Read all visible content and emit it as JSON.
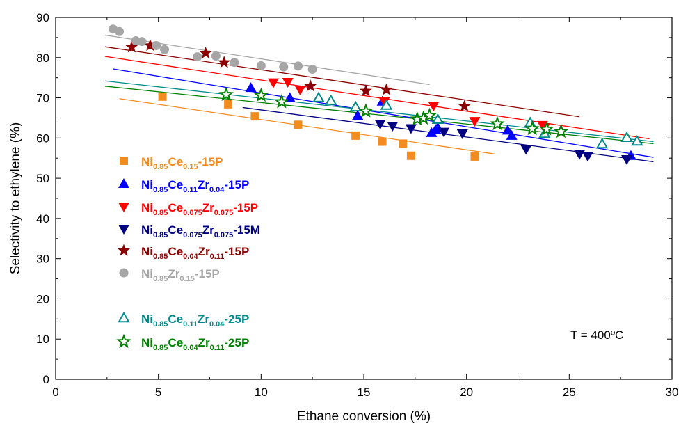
{
  "chart_data": {
    "type": "scatter",
    "xlabel": "Ethane conversion (%)",
    "ylabel": "Selectivity to ethylene (%)",
    "xlim": [
      0,
      30
    ],
    "ylim": [
      0,
      90
    ],
    "x_ticks": [
      "0",
      "5",
      "10",
      "15",
      "20",
      "25",
      "30"
    ],
    "y_ticks": [
      "0",
      "10",
      "20",
      "30",
      "40",
      "50",
      "60",
      "70",
      "80",
      "90"
    ],
    "grid": false,
    "legend_position": "left",
    "annotation": "T = 400ºC",
    "series": [
      {
        "key": "s1",
        "legend": [
          [
            "Ni",
            ""
          ],
          [
            "0.85",
            "sub"
          ],
          [
            "Ce",
            ""
          ],
          [
            "0.15",
            "sub"
          ],
          [
            "-15P",
            ""
          ]
        ],
        "marker": "square",
        "filled": true,
        "color": "#F28C1E",
        "points": [
          [
            5.2,
            70.3
          ],
          [
            8.4,
            68.4
          ],
          [
            9.7,
            65.4
          ],
          [
            11.8,
            63.3
          ],
          [
            14.6,
            60.6
          ],
          [
            15.9,
            59.1
          ],
          [
            16.9,
            58.6
          ],
          [
            17.3,
            55.6
          ],
          [
            20.4,
            55.4
          ]
        ],
        "trend": {
          "x": [
            3.1,
            21.4
          ],
          "y": [
            69.8,
            56.0
          ]
        }
      },
      {
        "key": "s2",
        "legend": [
          [
            "Ni",
            ""
          ],
          [
            "0.85",
            "sub"
          ],
          [
            "Ce",
            ""
          ],
          [
            "0.11",
            "sub"
          ],
          [
            "Zr",
            ""
          ],
          [
            "0.04",
            "sub"
          ],
          [
            "-15P",
            ""
          ]
        ],
        "marker": "triangle-up",
        "filled": true,
        "color": "#0000FF",
        "points": [
          [
            9.5,
            72.5
          ],
          [
            11.4,
            70.0
          ],
          [
            14.7,
            65.6
          ],
          [
            15.9,
            69.1
          ],
          [
            18.3,
            61.3
          ],
          [
            18.5,
            62.1
          ],
          [
            18.6,
            62.6
          ],
          [
            22.0,
            61.9
          ],
          [
            22.2,
            60.6
          ],
          [
            28.0,
            55.6
          ]
        ],
        "trend": {
          "x": [
            2.8,
            29.1
          ],
          "y": [
            77.2,
            55.2
          ]
        }
      },
      {
        "key": "s3",
        "legend": [
          [
            "Ni",
            ""
          ],
          [
            "0.85",
            "sub"
          ],
          [
            "Ce",
            ""
          ],
          [
            "0.075",
            "sub"
          ],
          [
            "Zr",
            ""
          ],
          [
            "0.075",
            "sub"
          ],
          [
            "-15P",
            ""
          ]
        ],
        "marker": "triangle-down",
        "filled": true,
        "color": "#FF0000",
        "points": [
          [
            10.6,
            73.8
          ],
          [
            11.3,
            73.9
          ],
          [
            11.9,
            72.0
          ],
          [
            16.0,
            69.1
          ],
          [
            18.4,
            68.0
          ],
          [
            20.4,
            64.2
          ],
          [
            23.7,
            63.2
          ],
          [
            23.8,
            62.6
          ]
        ],
        "trend": {
          "x": [
            2.4,
            28.9
          ],
          "y": [
            80.3,
            59.8
          ]
        }
      },
      {
        "key": "s4",
        "legend": [
          [
            "Ni",
            ""
          ],
          [
            "0.85",
            "sub"
          ],
          [
            "Ce",
            ""
          ],
          [
            "0.075",
            "sub"
          ],
          [
            "Zr",
            ""
          ],
          [
            "0.075",
            "sub"
          ],
          [
            "-15M",
            ""
          ]
        ],
        "marker": "triangle-down",
        "filled": true,
        "color": "#000080",
        "points": [
          [
            15.8,
            63.5
          ],
          [
            16.4,
            63.0
          ],
          [
            17.3,
            62.4
          ],
          [
            18.9,
            61.5
          ],
          [
            19.8,
            61.1
          ],
          [
            22.9,
            57.2
          ],
          [
            25.5,
            56.0
          ],
          [
            25.9,
            55.5
          ],
          [
            27.8,
            54.7
          ]
        ],
        "trend": {
          "x": [
            9.1,
            29.1
          ],
          "y": [
            67.6,
            54.1
          ]
        }
      },
      {
        "key": "s5",
        "legend": [
          [
            "Ni",
            ""
          ],
          [
            "0.85",
            "sub"
          ],
          [
            "Ce",
            ""
          ],
          [
            "0.04",
            "sub"
          ],
          [
            "Zr",
            ""
          ],
          [
            "0.11",
            "sub"
          ],
          [
            "-15P",
            ""
          ]
        ],
        "marker": "star",
        "filled": true,
        "color": "#8B0000",
        "points": [
          [
            3.7,
            82.6
          ],
          [
            4.6,
            83.0
          ],
          [
            7.3,
            81.1
          ],
          [
            8.2,
            78.8
          ],
          [
            12.4,
            72.9
          ],
          [
            15.1,
            71.7
          ],
          [
            16.1,
            72.0
          ],
          [
            19.9,
            67.9
          ]
        ],
        "trend": {
          "x": [
            2.4,
            25.5
          ],
          "y": [
            82.7,
            65.3
          ]
        }
      },
      {
        "key": "s6",
        "legend": [
          [
            "Ni",
            ""
          ],
          [
            "0.85",
            "sub"
          ],
          [
            "Zr",
            ""
          ],
          [
            "0.15",
            "sub"
          ],
          [
            "-15P",
            ""
          ]
        ],
        "marker": "circle",
        "filled": true,
        "color": "#A6A6A6",
        "points": [
          [
            2.8,
            87.1
          ],
          [
            3.1,
            86.5
          ],
          [
            3.9,
            84.2
          ],
          [
            4.2,
            84.0
          ],
          [
            4.9,
            83.0
          ],
          [
            5.3,
            82.0
          ],
          [
            6.9,
            80.2
          ],
          [
            7.8,
            80.4
          ],
          [
            8.7,
            78.8
          ],
          [
            10.0,
            78.0
          ],
          [
            11.1,
            77.7
          ],
          [
            11.8,
            77.9
          ],
          [
            12.5,
            77.1
          ]
        ],
        "trend": {
          "x": [
            2.4,
            18.2
          ],
          "y": [
            85.6,
            73.3
          ]
        }
      },
      {
        "key": "s7",
        "legend": [
          [
            "Ni",
            ""
          ],
          [
            "0.85",
            "sub"
          ],
          [
            "Ce",
            ""
          ],
          [
            "0.11",
            "sub"
          ],
          [
            "Zr",
            ""
          ],
          [
            "0.04",
            "sub"
          ],
          [
            "-25P",
            ""
          ]
        ],
        "marker": "triangle-up",
        "filled": false,
        "color": "#008B8B",
        "points": [
          [
            12.8,
            70.0
          ],
          [
            13.4,
            69.3
          ],
          [
            14.6,
            67.7
          ],
          [
            16.1,
            68.1
          ],
          [
            18.6,
            64.6
          ],
          [
            23.1,
            63.8
          ],
          [
            23.8,
            61.1
          ],
          [
            26.6,
            58.5
          ],
          [
            27.8,
            60.1
          ],
          [
            28.3,
            59.2
          ]
        ],
        "trend": {
          "x": [
            2.4,
            29.1
          ],
          "y": [
            74.2,
            59.1
          ]
        }
      },
      {
        "key": "s8",
        "legend": [
          [
            "Ni",
            ""
          ],
          [
            "0.85",
            "sub"
          ],
          [
            "Ce",
            ""
          ],
          [
            "0.04",
            "sub"
          ],
          [
            "Zr",
            ""
          ],
          [
            "0.11",
            "sub"
          ],
          [
            "-25P",
            ""
          ]
        ],
        "marker": "star",
        "filled": false,
        "color": "#008000",
        "points": [
          [
            8.3,
            70.8
          ],
          [
            10.0,
            70.6
          ],
          [
            11.0,
            69.0
          ],
          [
            15.1,
            66.7
          ],
          [
            17.6,
            64.7
          ],
          [
            17.9,
            64.9
          ],
          [
            18.2,
            65.6
          ],
          [
            21.5,
            63.5
          ],
          [
            23.2,
            62.3
          ],
          [
            23.9,
            62.2
          ],
          [
            24.6,
            61.6
          ]
        ],
        "trend": {
          "x": [
            2.4,
            29.1
          ],
          "y": [
            72.9,
            58.6
          ]
        }
      }
    ]
  }
}
